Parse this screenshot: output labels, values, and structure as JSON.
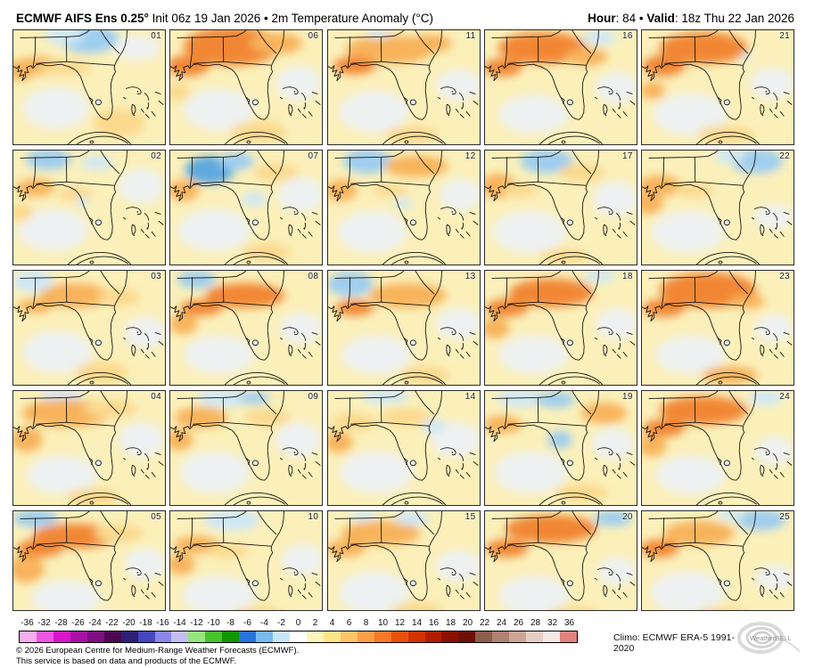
{
  "header": {
    "title_bold": "ECMWF AIFS Ens 0.25°",
    "title_rest": " Init 06z 19 Jan 2026 • 2m Temperature Anomaly (°C)",
    "hour_label": "Hour",
    "hour_rest": ": 84 • ",
    "valid_label": "Valid",
    "valid_rest": ": 18z Thu 22 Jan 2026"
  },
  "colorbar": {
    "ticks": [
      "-36",
      "-32",
      "-28",
      "-26",
      "-24",
      "-22",
      "-20",
      "-18",
      "-16",
      "-14",
      "-12",
      "-10",
      "-8",
      "-6",
      "-4",
      "-2",
      "0",
      "2",
      "4",
      "6",
      "8",
      "10",
      "12",
      "14",
      "16",
      "18",
      "20",
      "22",
      "24",
      "26",
      "28",
      "32",
      "36"
    ],
    "colors": [
      "#F6AEEF",
      "#EE55E2",
      "#DB14CE",
      "#A812A5",
      "#7D0F80",
      "#4B0A50",
      "#2D1E78",
      "#4646BE",
      "#8C87E6",
      "#C3BDF4",
      "#96E67D",
      "#46C32D",
      "#0F9600",
      "#2873DC",
      "#78B9F0",
      "#C8E6FA",
      "#FFFFFF",
      "#FFF5B9",
      "#FFE487",
      "#FFC369",
      "#FF9E48",
      "#F87828",
      "#EB500A",
      "#D23200",
      "#AF1E00",
      "#8C0F00",
      "#6E0F05",
      "#8C5F4B",
      "#AF8273",
      "#CDA596",
      "#E6CDC3",
      "#F7E8E4",
      "#E0837D"
    ],
    "climo": "Climo: ECMWF ERA-5 1991-2020"
  },
  "footer": {
    "line1": "© 2026 European Centre for Medium-Range Weather Forecasts (ECMWF).",
    "line2": "This service is based on data and products of the ECMWF."
  },
  "logo": {
    "text": "WeatherBELL"
  },
  "map": {
    "base_color": "#FBF0BA",
    "palette": {
      "w": "#EEF1F1",
      "b1": "#CFE8F7",
      "b2": "#9FCEEF",
      "b3": "#5FA9DE",
      "o1": "#FBD98E",
      "o2": "#F8B35C",
      "o3": "#F18734"
    }
  },
  "panels": [
    {
      "id": "01",
      "blobs": [
        [
          86,
          10,
          34,
          16,
          "b2"
        ],
        [
          58,
          6,
          22,
          10,
          "b1"
        ],
        [
          30,
          40,
          26,
          10,
          "o2"
        ],
        [
          8,
          45,
          16,
          12,
          "o2"
        ],
        [
          60,
          42,
          30,
          8,
          "o1"
        ],
        [
          140,
          20,
          26,
          14,
          "w"
        ],
        [
          48,
          88,
          38,
          24,
          "w"
        ],
        [
          120,
          105,
          30,
          16,
          "o1"
        ]
      ]
    },
    {
      "id": "02",
      "blobs": [
        [
          40,
          10,
          26,
          12,
          "b2"
        ],
        [
          95,
          14,
          18,
          8,
          "b1"
        ],
        [
          25,
          42,
          22,
          10,
          "o2"
        ],
        [
          70,
          50,
          20,
          8,
          "o1"
        ],
        [
          78,
          58,
          8,
          5,
          "b1"
        ],
        [
          45,
          90,
          40,
          24,
          "w"
        ],
        [
          145,
          40,
          26,
          20,
          "w"
        ],
        [
          8,
          70,
          14,
          10,
          "o1"
        ]
      ]
    },
    {
      "id": "03",
      "blobs": [
        [
          22,
          12,
          24,
          12,
          "b1"
        ],
        [
          70,
          28,
          40,
          14,
          "o2"
        ],
        [
          25,
          40,
          20,
          8,
          "o2"
        ],
        [
          120,
          30,
          24,
          10,
          "o1"
        ],
        [
          50,
          92,
          40,
          24,
          "w"
        ],
        [
          150,
          70,
          24,
          18,
          "w"
        ],
        [
          100,
          115,
          30,
          12,
          "o1"
        ]
      ]
    },
    {
      "id": "04",
      "blobs": [
        [
          55,
          6,
          24,
          8,
          "b1"
        ],
        [
          60,
          25,
          50,
          16,
          "o2"
        ],
        [
          15,
          55,
          18,
          14,
          "o2"
        ],
        [
          110,
          20,
          30,
          10,
          "o1"
        ],
        [
          55,
          95,
          40,
          22,
          "w"
        ],
        [
          145,
          55,
          26,
          20,
          "w"
        ],
        [
          90,
          120,
          30,
          10,
          "o1"
        ]
      ]
    },
    {
      "id": "05",
      "blobs": [
        [
          25,
          8,
          26,
          10,
          "b2"
        ],
        [
          70,
          28,
          48,
          14,
          "o3"
        ],
        [
          30,
          42,
          26,
          10,
          "o3"
        ],
        [
          15,
          65,
          20,
          16,
          "o2"
        ],
        [
          120,
          25,
          28,
          10,
          "o1"
        ],
        [
          60,
          98,
          40,
          20,
          "w"
        ],
        [
          150,
          60,
          24,
          18,
          "w"
        ]
      ]
    },
    {
      "id": "06",
      "blobs": [
        [
          70,
          18,
          55,
          22,
          "o3"
        ],
        [
          20,
          40,
          24,
          12,
          "o3"
        ],
        [
          120,
          15,
          30,
          12,
          "o2"
        ],
        [
          55,
          90,
          40,
          24,
          "w"
        ],
        [
          145,
          60,
          26,
          20,
          "w"
        ],
        [
          100,
          115,
          32,
          12,
          "o1"
        ],
        [
          8,
          70,
          14,
          10,
          "o1"
        ]
      ]
    },
    {
      "id": "07",
      "blobs": [
        [
          45,
          22,
          28,
          16,
          "b3"
        ],
        [
          75,
          12,
          20,
          10,
          "b2"
        ],
        [
          15,
          45,
          18,
          12,
          "o2"
        ],
        [
          120,
          25,
          26,
          10,
          "o1"
        ],
        [
          50,
          90,
          42,
          24,
          "w"
        ],
        [
          148,
          50,
          26,
          20,
          "w"
        ],
        [
          95,
          55,
          14,
          8,
          "b1"
        ],
        [
          110,
          115,
          28,
          10,
          "o1"
        ]
      ]
    },
    {
      "id": "08",
      "blobs": [
        [
          30,
          10,
          22,
          10,
          "b2"
        ],
        [
          85,
          28,
          45,
          14,
          "o3"
        ],
        [
          35,
          42,
          24,
          9,
          "o3"
        ],
        [
          15,
          60,
          16,
          12,
          "o2"
        ],
        [
          55,
          95,
          40,
          22,
          "w"
        ],
        [
          148,
          65,
          24,
          18,
          "w"
        ]
      ]
    },
    {
      "id": "09",
      "blobs": [
        [
          60,
          8,
          30,
          10,
          "b1"
        ],
        [
          95,
          8,
          18,
          7,
          "b2"
        ],
        [
          35,
          30,
          30,
          12,
          "o2"
        ],
        [
          10,
          55,
          16,
          12,
          "o2"
        ],
        [
          110,
          30,
          26,
          10,
          "o1"
        ],
        [
          50,
          92,
          40,
          24,
          "w"
        ],
        [
          145,
          55,
          26,
          20,
          "w"
        ]
      ]
    },
    {
      "id": "10",
      "blobs": [
        [
          70,
          10,
          32,
          12,
          "b1"
        ],
        [
          30,
          38,
          26,
          10,
          "o2"
        ],
        [
          65,
          45,
          24,
          8,
          "o1"
        ],
        [
          12,
          60,
          16,
          12,
          "o2"
        ],
        [
          55,
          95,
          42,
          22,
          "w"
        ],
        [
          150,
          55,
          24,
          18,
          "w"
        ],
        [
          100,
          118,
          30,
          10,
          "o1"
        ]
      ]
    },
    {
      "id": "11",
      "blobs": [
        [
          70,
          22,
          50,
          16,
          "o2"
        ],
        [
          30,
          40,
          24,
          10,
          "o3"
        ],
        [
          115,
          15,
          26,
          10,
          "o2"
        ],
        [
          58,
          4,
          14,
          5,
          "b1"
        ],
        [
          52,
          92,
          40,
          24,
          "w"
        ],
        [
          148,
          62,
          26,
          18,
          "w"
        ],
        [
          95,
          118,
          30,
          10,
          "o1"
        ]
      ]
    },
    {
      "id": "12",
      "blobs": [
        [
          45,
          12,
          28,
          14,
          "b2"
        ],
        [
          100,
          18,
          36,
          12,
          "o2"
        ],
        [
          15,
          45,
          18,
          12,
          "o2"
        ],
        [
          70,
          45,
          20,
          7,
          "o1"
        ],
        [
          50,
          92,
          40,
          24,
          "w"
        ],
        [
          150,
          50,
          24,
          18,
          "w"
        ],
        [
          85,
          60,
          10,
          6,
          "b1"
        ]
      ]
    },
    {
      "id": "13",
      "blobs": [
        [
          25,
          15,
          26,
          14,
          "b2"
        ],
        [
          90,
          28,
          44,
          14,
          "o2"
        ],
        [
          30,
          42,
          22,
          9,
          "o3"
        ],
        [
          55,
          95,
          40,
          22,
          "w"
        ],
        [
          148,
          60,
          26,
          18,
          "w"
        ],
        [
          110,
          118,
          28,
          10,
          "o1"
        ]
      ]
    },
    {
      "id": "14",
      "blobs": [
        [
          65,
          6,
          28,
          8,
          "b1"
        ],
        [
          30,
          35,
          26,
          10,
          "o1"
        ],
        [
          90,
          30,
          30,
          10,
          "o1"
        ],
        [
          12,
          58,
          16,
          12,
          "o2"
        ],
        [
          55,
          92,
          42,
          24,
          "w"
        ],
        [
          145,
          55,
          28,
          20,
          "w"
        ],
        [
          120,
          40,
          14,
          8,
          "b1"
        ]
      ]
    },
    {
      "id": "15",
      "blobs": [
        [
          60,
          25,
          45,
          14,
          "o2"
        ],
        [
          20,
          42,
          22,
          10,
          "o2"
        ],
        [
          95,
          8,
          20,
          8,
          "b1"
        ],
        [
          40,
          5,
          16,
          6,
          "b1"
        ],
        [
          52,
          92,
          40,
          24,
          "w"
        ],
        [
          148,
          62,
          26,
          18,
          "w"
        ],
        [
          100,
          115,
          30,
          12,
          "o1"
        ]
      ]
    },
    {
      "id": "16",
      "blobs": [
        [
          65,
          20,
          50,
          18,
          "o3"
        ],
        [
          20,
          42,
          22,
          10,
          "o3"
        ],
        [
          130,
          8,
          20,
          8,
          "b1"
        ],
        [
          115,
          30,
          24,
          10,
          "o2"
        ],
        [
          55,
          95,
          40,
          22,
          "w"
        ],
        [
          150,
          65,
          24,
          18,
          "w"
        ]
      ]
    },
    {
      "id": "17",
      "blobs": [
        [
          70,
          12,
          30,
          14,
          "b2"
        ],
        [
          15,
          40,
          20,
          14,
          "o2"
        ],
        [
          40,
          45,
          20,
          8,
          "o1"
        ],
        [
          110,
          25,
          26,
          10,
          "o1"
        ],
        [
          50,
          92,
          42,
          24,
          "w"
        ],
        [
          148,
          55,
          26,
          20,
          "w"
        ],
        [
          90,
          120,
          28,
          8,
          "o1"
        ]
      ]
    },
    {
      "id": "18",
      "blobs": [
        [
          75,
          25,
          48,
          16,
          "o3"
        ],
        [
          25,
          42,
          24,
          10,
          "o3"
        ],
        [
          130,
          6,
          18,
          7,
          "b1"
        ],
        [
          12,
          65,
          16,
          12,
          "o2"
        ],
        [
          55,
          95,
          40,
          22,
          "w"
        ],
        [
          150,
          60,
          24,
          18,
          "w"
        ]
      ]
    },
    {
      "id": "19",
      "blobs": [
        [
          40,
          8,
          26,
          10,
          "b1"
        ],
        [
          80,
          10,
          22,
          9,
          "b2"
        ],
        [
          85,
          55,
          14,
          10,
          "b2"
        ],
        [
          20,
          38,
          22,
          10,
          "o2"
        ],
        [
          135,
          25,
          26,
          12,
          "o2"
        ],
        [
          52,
          92,
          42,
          24,
          "w"
        ],
        [
          145,
          60,
          24,
          18,
          "w"
        ],
        [
          110,
          115,
          30,
          10,
          "o1"
        ]
      ]
    },
    {
      "id": "20",
      "blobs": [
        [
          75,
          20,
          52,
          16,
          "o3"
        ],
        [
          145,
          8,
          22,
          9,
          "b2"
        ],
        [
          25,
          42,
          24,
          10,
          "o3"
        ],
        [
          55,
          95,
          40,
          22,
          "w"
        ],
        [
          150,
          68,
          22,
          16,
          "w"
        ],
        [
          100,
          118,
          30,
          10,
          "o1"
        ]
      ]
    },
    {
      "id": "21",
      "blobs": [
        [
          70,
          20,
          50,
          18,
          "o3"
        ],
        [
          25,
          40,
          24,
          12,
          "o3"
        ],
        [
          118,
          30,
          6,
          4,
          "b1"
        ],
        [
          55,
          95,
          42,
          24,
          "w"
        ],
        [
          148,
          60,
          26,
          18,
          "w"
        ],
        [
          95,
          118,
          32,
          10,
          "o1"
        ],
        [
          12,
          68,
          14,
          10,
          "o2"
        ]
      ]
    },
    {
      "id": "22",
      "blobs": [
        [
          130,
          12,
          30,
          14,
          "b2"
        ],
        [
          100,
          6,
          18,
          8,
          "b1"
        ],
        [
          20,
          40,
          24,
          12,
          "o2"
        ],
        [
          8,
          60,
          16,
          12,
          "o2"
        ],
        [
          60,
          45,
          22,
          8,
          "o1"
        ],
        [
          52,
          92,
          42,
          24,
          "w"
        ],
        [
          150,
          75,
          22,
          14,
          "w"
        ]
      ]
    },
    {
      "id": "23",
      "blobs": [
        [
          75,
          22,
          55,
          20,
          "o3"
        ],
        [
          25,
          42,
          24,
          10,
          "o3"
        ],
        [
          120,
          35,
          20,
          8,
          "o2"
        ],
        [
          55,
          95,
          40,
          22,
          "w"
        ],
        [
          150,
          65,
          22,
          16,
          "w"
        ],
        [
          100,
          118,
          32,
          10,
          "o2"
        ]
      ]
    },
    {
      "id": "24",
      "blobs": [
        [
          70,
          22,
          50,
          16,
          "o3"
        ],
        [
          140,
          8,
          20,
          8,
          "b1"
        ],
        [
          25,
          42,
          24,
          10,
          "o3"
        ],
        [
          12,
          62,
          16,
          12,
          "o2"
        ],
        [
          55,
          95,
          40,
          22,
          "w"
        ],
        [
          150,
          68,
          22,
          16,
          "w"
        ]
      ]
    },
    {
      "id": "25",
      "blobs": [
        [
          135,
          10,
          28,
          12,
          "b2"
        ],
        [
          65,
          25,
          40,
          14,
          "o2"
        ],
        [
          20,
          42,
          22,
          10,
          "o3"
        ],
        [
          100,
          4,
          16,
          6,
          "b1"
        ],
        [
          52,
          92,
          42,
          24,
          "w"
        ],
        [
          150,
          75,
          22,
          14,
          "w"
        ],
        [
          90,
          118,
          30,
          10,
          "o1"
        ]
      ]
    }
  ]
}
